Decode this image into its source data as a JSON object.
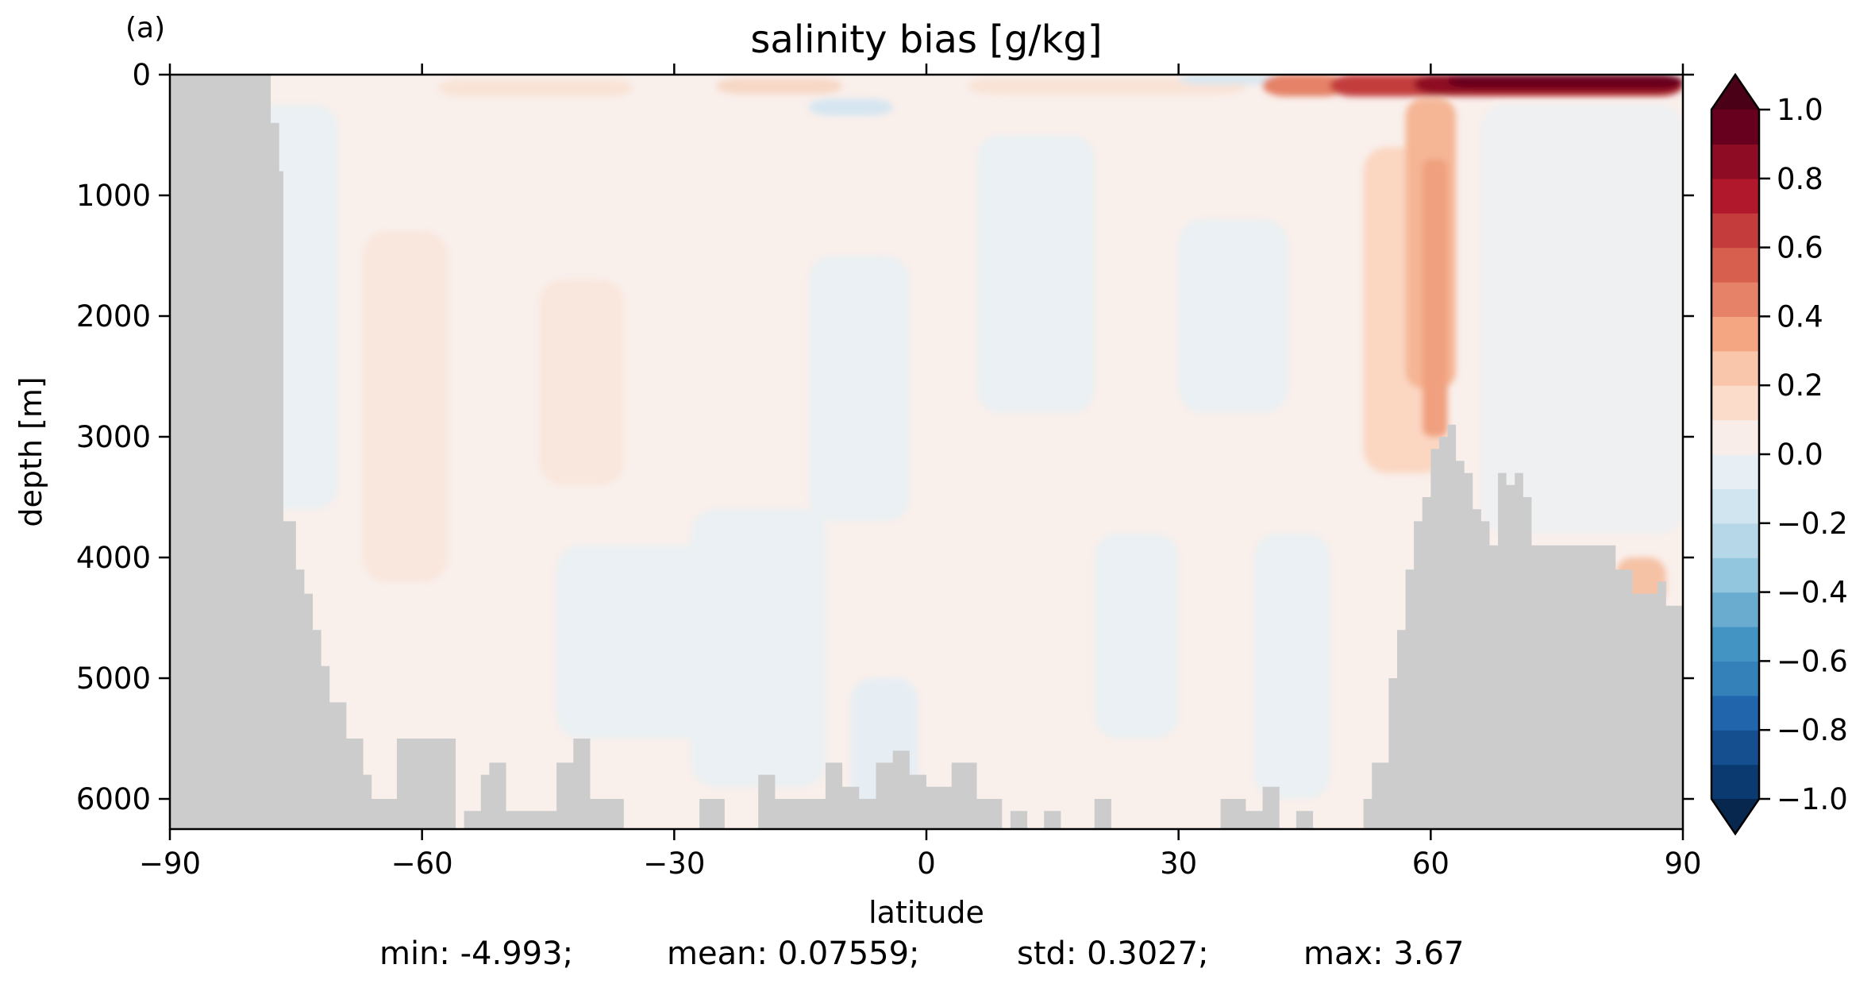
{
  "panel_label": "(a)",
  "chart_data": {
    "type": "heatmap",
    "title": "salinity bias [g/kg]",
    "xlabel": "latitude",
    "ylabel": "depth [m]",
    "xlim": [
      -90,
      90
    ],
    "ylim": [
      6250,
      0
    ],
    "y_inverted": true,
    "x_ticks": [
      -90,
      -60,
      -30,
      0,
      30,
      60,
      90
    ],
    "x_tick_labels": [
      "−90",
      "−60",
      "−30",
      "0",
      "30",
      "60",
      "90"
    ],
    "y_ticks": [
      0,
      1000,
      2000,
      3000,
      4000,
      5000,
      6000
    ],
    "y_tick_labels": [
      "0",
      "1000",
      "2000",
      "3000",
      "4000",
      "5000",
      "6000"
    ],
    "grid": false,
    "colormap": "RdBu_r",
    "mask_color": "#cccccc",
    "colorbar": {
      "min": -1.0,
      "max": 1.0,
      "levels": [
        -1.0,
        -0.9,
        -0.8,
        -0.7,
        -0.6,
        -0.5,
        -0.4,
        -0.3,
        -0.2,
        -0.1,
        0.0,
        0.1,
        0.2,
        0.3,
        0.4,
        0.5,
        0.6,
        0.7,
        0.8,
        0.9,
        1.0
      ],
      "tick_values": [
        1.0,
        0.8,
        0.6,
        0.4,
        0.2,
        0.0,
        -0.2,
        -0.4,
        -0.6,
        -0.8,
        -1.0
      ],
      "tick_labels": [
        "1.0",
        "0.8",
        "0.6",
        "0.4",
        "0.2",
        "0.0",
        "−0.2",
        "−0.4",
        "−0.6",
        "−0.8",
        "−1.0"
      ],
      "colors": [
        "#0a3a70",
        "#164f8f",
        "#2166ac",
        "#3480b9",
        "#4393c3",
        "#6aacd0",
        "#92c5de",
        "#b5d7e8",
        "#d1e5f0",
        "#e8eff4",
        "#f8ede8",
        "#fbdbc9",
        "#f9c5ab",
        "#f4a582",
        "#e58267",
        "#d6604d",
        "#c43c3c",
        "#b2182b",
        "#8f0d24",
        "#67001f"
      ],
      "extend": "both",
      "under_color": "#08274f",
      "over_color": "#4a0016"
    },
    "bathymetry_max_depth_by_latitude": {
      "lat": [
        -90,
        -79,
        -78,
        -77,
        -76.5,
        -75,
        -74,
        -73,
        -72,
        -71,
        -69,
        -67,
        -66,
        -63,
        -60,
        -56,
        -55,
        -53,
        -52,
        -50,
        -48,
        -44,
        -42,
        -40,
        -36,
        -35,
        -33,
        -30,
        -27,
        -24,
        -20,
        -18,
        -12,
        -10,
        -8,
        -6,
        -4,
        -2,
        0,
        3,
        6,
        9,
        10,
        12,
        14,
        16,
        18,
        20,
        22,
        24,
        26,
        28,
        30,
        32,
        35,
        38,
        40,
        42,
        44,
        46,
        48,
        50,
        52,
        53,
        54,
        55,
        56,
        57,
        58,
        59,
        60,
        61,
        62,
        63,
        64,
        65,
        66,
        67,
        68,
        69,
        70,
        71,
        72,
        74,
        76,
        78,
        80,
        82,
        84,
        86,
        87,
        88,
        90
      ],
      "depth": [
        0,
        0,
        400,
        800,
        3700,
        4100,
        4300,
        4600,
        4900,
        5200,
        5500,
        5800,
        6000,
        5500,
        5500,
        6250,
        6100,
        5800,
        5700,
        6100,
        6100,
        5700,
        5500,
        6000,
        6250,
        6250,
        6250,
        6250,
        6000,
        6250,
        5800,
        6000,
        5700,
        5900,
        6000,
        5700,
        5600,
        5800,
        5900,
        5700,
        6000,
        6250,
        6100,
        6250,
        6100,
        6250,
        6250,
        6000,
        6250,
        6250,
        6250,
        6250,
        6250,
        6250,
        6000,
        6100,
        5900,
        6250,
        6100,
        6250,
        6250,
        6250,
        6000,
        5700,
        5700,
        5000,
        4600,
        4100,
        3700,
        3500,
        3100,
        3000,
        2900,
        3200,
        3300,
        3600,
        3700,
        3900,
        3300,
        3400,
        3300,
        3500,
        3900,
        3900,
        3900,
        3900,
        3900,
        4100,
        4300,
        4300,
        4200,
        4400,
        4300
      ]
    },
    "notable_features": [
      {
        "region": "lat 45 to 90, depth 0-200",
        "bias": "strong positive, above 1.0 g/kg"
      },
      {
        "region": "lat 57 to 66, depth 200-3300",
        "bias": "positive plume, 0.3-0.5 g/kg"
      },
      {
        "region": "most of interior",
        "bias": "weak, -0.1 to 0.1 g/kg"
      }
    ],
    "stats": {
      "min": "min: -4.993;",
      "mean": "mean: 0.07559;",
      "std": "std: 0.3027;",
      "max": "max: 3.67"
    }
  }
}
